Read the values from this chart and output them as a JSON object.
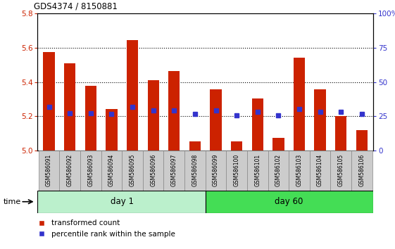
{
  "title": "GDS4374 / 8150881",
  "samples": [
    "GSM586091",
    "GSM586092",
    "GSM586093",
    "GSM586094",
    "GSM586095",
    "GSM586096",
    "GSM586097",
    "GSM586098",
    "GSM586099",
    "GSM586100",
    "GSM586101",
    "GSM586102",
    "GSM586103",
    "GSM586104",
    "GSM586105",
    "GSM586106"
  ],
  "bar_values": [
    5.575,
    5.51,
    5.38,
    5.245,
    5.645,
    5.41,
    5.465,
    5.055,
    5.36,
    5.055,
    5.305,
    5.075,
    5.545,
    5.36,
    5.2,
    5.12
  ],
  "percentile_values": [
    5.255,
    5.22,
    5.22,
    5.215,
    5.255,
    5.235,
    5.235,
    5.215,
    5.235,
    5.205,
    5.225,
    5.205,
    5.245,
    5.225,
    5.225,
    5.215
  ],
  "bar_base": 5.0,
  "ylim": [
    5.0,
    5.8
  ],
  "yticks_left": [
    5.0,
    5.2,
    5.4,
    5.6,
    5.8
  ],
  "yticks_right": [
    0,
    25,
    50,
    75,
    100
  ],
  "bar_color": "#cc2200",
  "percentile_color": "#3333cc",
  "group1_label": "day 1",
  "group2_label": "day 60",
  "group1_count": 8,
  "group2_count": 8,
  "group1_color": "#bbf0cc",
  "group2_color": "#44dd55",
  "legend_red_label": "transformed count",
  "legend_blue_label": "percentile rank within the sample",
  "time_label": "time",
  "bar_width": 0.55
}
